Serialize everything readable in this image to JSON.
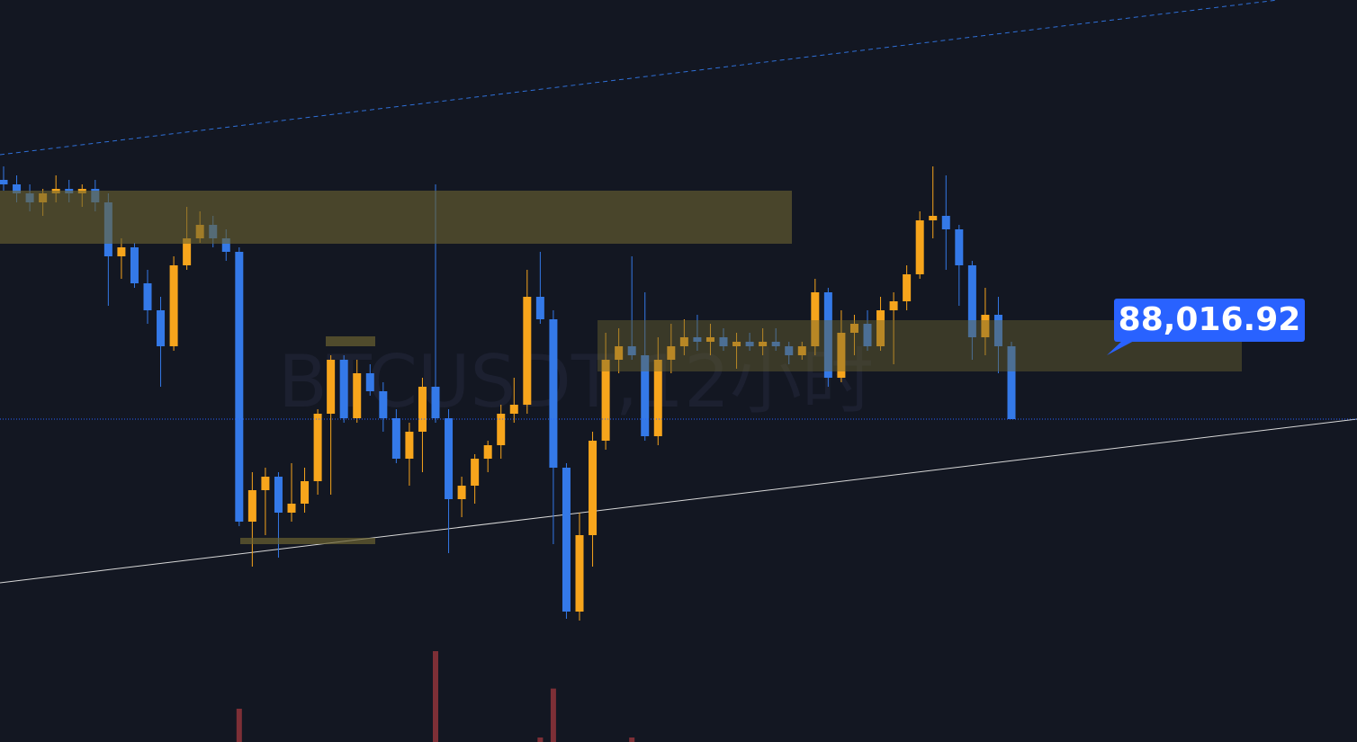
{
  "chart_data": {
    "type": "candlestick",
    "watermark": "BTCUSDT,12小时",
    "ylim": [
      80837,
      97337
    ],
    "up_color": "#f7a51c",
    "down_color": "#3479e8",
    "open": [
      93337,
      93237,
      93037,
      92837,
      93037,
      93137,
      93037,
      93137,
      92837,
      91637,
      91837,
      91037,
      90437,
      89637,
      91437,
      92037,
      92337,
      92037,
      91737,
      85737,
      86437,
      86737,
      85937,
      86137,
      86637,
      88137,
      89337,
      88037,
      89037,
      88637,
      88037,
      87137,
      87737,
      88737,
      88037,
      86237,
      86537,
      87137,
      87437,
      88137,
      88337,
      90737,
      90237,
      86937,
      83737,
      85437,
      87537,
      89337,
      89637,
      89437,
      87637,
      89337,
      89637,
      89837,
      89737,
      89837,
      89637,
      89737,
      89637,
      89737,
      89637,
      89437,
      89637,
      90837,
      88937,
      89937,
      90137,
      89637,
      90437,
      90637,
      91237,
      92437,
      92537,
      92237,
      91437,
      89837,
      90337,
      89637
    ],
    "high": [
      93637,
      93437,
      93237,
      93137,
      93437,
      93337,
      93237,
      93337,
      93037,
      92037,
      91937,
      91337,
      90737,
      91637,
      92737,
      92637,
      92537,
      92237,
      91837,
      86837,
      86937,
      86837,
      87037,
      86937,
      88237,
      89437,
      89437,
      89337,
      89237,
      88837,
      88237,
      87937,
      88937,
      93237,
      88237,
      86737,
      87237,
      87537,
      88337,
      88937,
      91337,
      91737,
      90437,
      87037,
      85937,
      87737,
      89937,
      90037,
      91637,
      90837,
      89837,
      90137,
      90237,
      90337,
      90137,
      90037,
      89937,
      89937,
      90037,
      90037,
      89737,
      89737,
      91137,
      90937,
      90437,
      90337,
      90437,
      90737,
      90837,
      91437,
      92637,
      93637,
      93437,
      92337,
      91537,
      90937,
      90737,
      89737
    ],
    "low": [
      93097,
      92837,
      92637,
      92537,
      92837,
      92837,
      92737,
      92637,
      90537,
      91137,
      90937,
      90137,
      88737,
      89537,
      91337,
      91937,
      91837,
      91537,
      85637,
      84737,
      85437,
      84937,
      85737,
      85937,
      86337,
      86337,
      87937,
      87937,
      88537,
      87737,
      87037,
      86537,
      86837,
      87937,
      85037,
      85837,
      86137,
      86837,
      87137,
      87937,
      88137,
      90137,
      85237,
      83577,
      83537,
      84737,
      87337,
      89037,
      89337,
      87537,
      87437,
      89037,
      89437,
      89537,
      89437,
      89537,
      89137,
      89537,
      89437,
      89537,
      89237,
      89337,
      89437,
      88737,
      88837,
      89437,
      89537,
      89537,
      89237,
      90437,
      91137,
      92037,
      91337,
      90537,
      89337,
      89437,
      89037,
      88016.92
    ],
    "close": [
      93237,
      93037,
      92837,
      93037,
      93137,
      93037,
      93137,
      92837,
      91637,
      91837,
      91037,
      90437,
      89637,
      91437,
      92037,
      92337,
      92037,
      91737,
      85737,
      86437,
      86737,
      85937,
      86137,
      86637,
      88137,
      89337,
      88037,
      89037,
      88637,
      88037,
      87137,
      87737,
      88737,
      88037,
      86237,
      86537,
      87137,
      87437,
      88137,
      88337,
      90737,
      90237,
      86937,
      83737,
      85437,
      87537,
      89337,
      89637,
      89437,
      87637,
      89337,
      89637,
      89837,
      89737,
      89837,
      89637,
      89737,
      89637,
      89737,
      89637,
      89437,
      89637,
      90837,
      88937,
      89937,
      90137,
      89637,
      90437,
      90637,
      91237,
      92437,
      92537,
      92237,
      91437,
      89837,
      90337,
      89637,
      88016.92
    ],
    "volume": {
      "color": "#7d2f36",
      "ylim": [
        0,
        100
      ],
      "values": [
        null,
        null,
        null,
        null,
        null,
        null,
        null,
        null,
        null,
        null,
        null,
        null,
        null,
        null,
        null,
        null,
        null,
        null,
        45,
        null,
        null,
        null,
        null,
        null,
        null,
        null,
        null,
        null,
        null,
        null,
        null,
        null,
        null,
        85,
        null,
        null,
        null,
        null,
        null,
        null,
        null,
        25,
        59,
        null,
        null,
        null,
        null,
        null,
        25,
        null,
        null,
        null,
        null,
        null,
        null,
        null,
        null,
        null,
        null,
        null,
        null,
        null,
        null,
        null,
        null,
        null,
        null,
        null,
        null,
        null,
        null,
        null,
        null,
        null,
        null,
        null,
        null,
        null
      ]
    },
    "last_price": {
      "value": 88016.92,
      "label": "88,016.92"
    }
  }
}
